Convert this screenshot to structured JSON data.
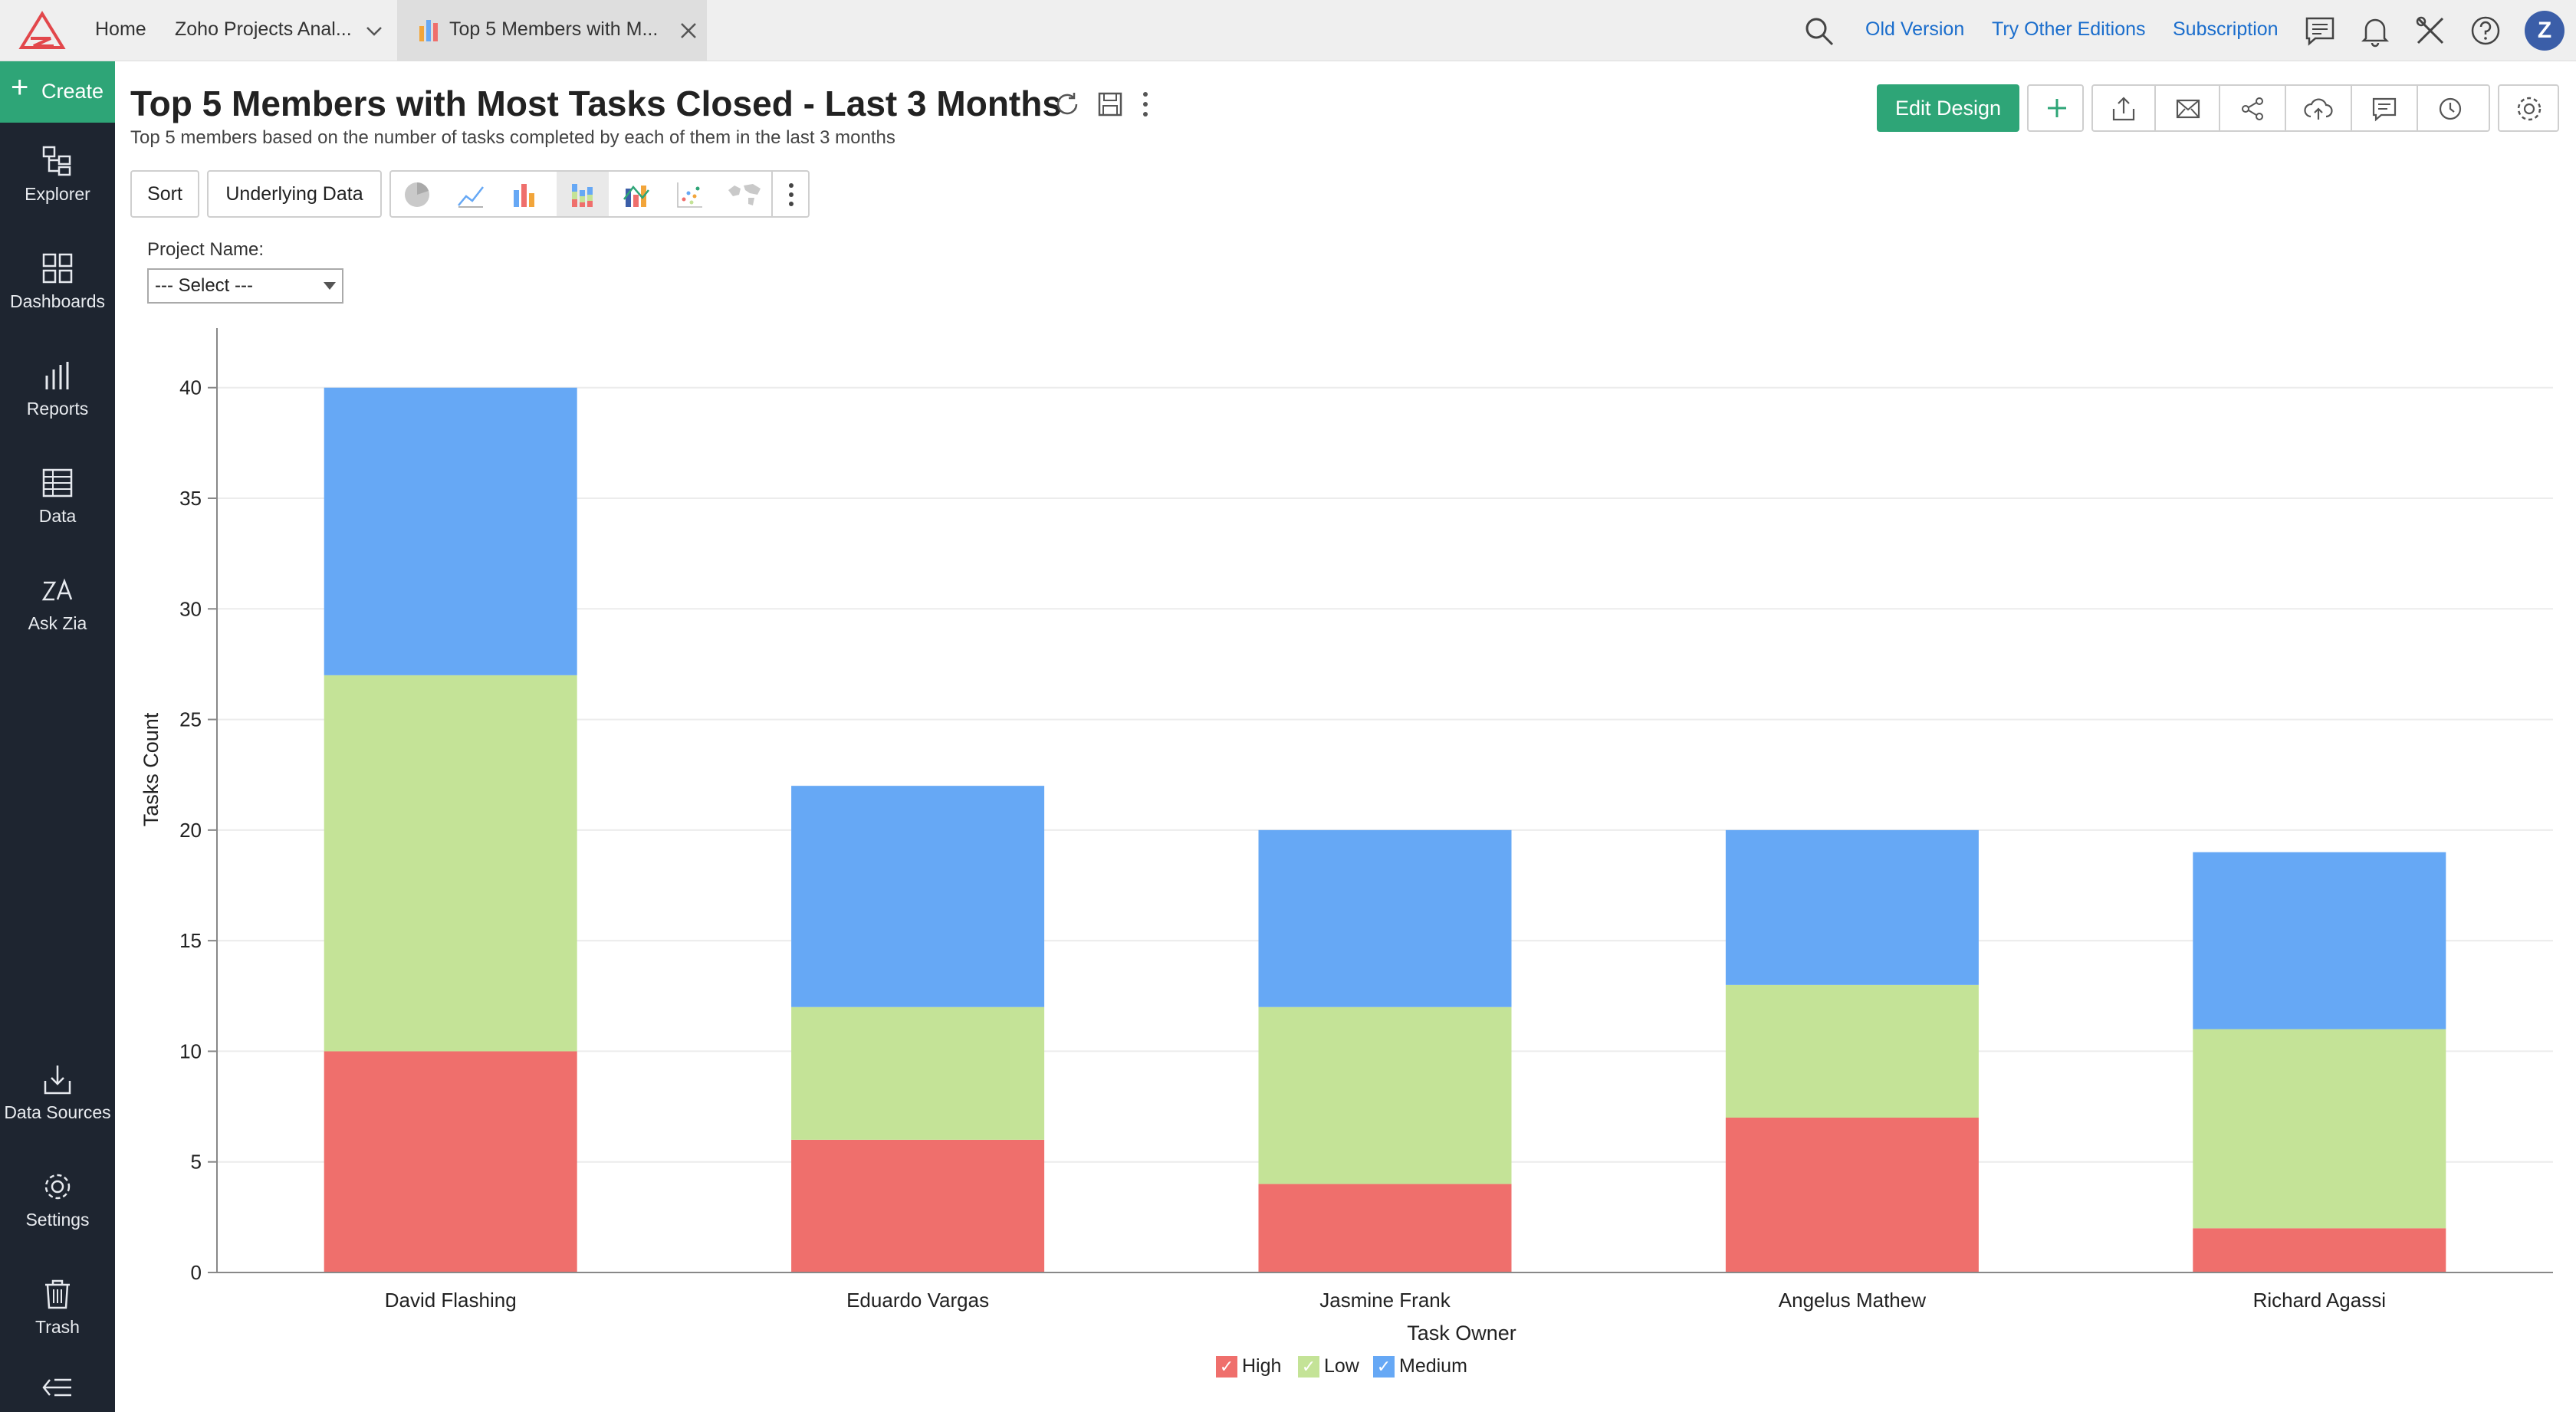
{
  "topbar": {
    "home": "Home",
    "workspace": "Zoho Projects Anal...",
    "tab_title": "Top 5 Members with M...",
    "links": [
      "Old Version",
      "Try Other Editions",
      "Subscription"
    ],
    "avatar": "Z"
  },
  "sidebar": {
    "create": "Create",
    "items": [
      {
        "label": "Explorer",
        "icon": "explorer-icon"
      },
      {
        "label": "Dashboards",
        "icon": "dashboards-icon"
      },
      {
        "label": "Reports",
        "icon": "reports-icon"
      },
      {
        "label": "Data",
        "icon": "data-icon"
      },
      {
        "label": "Ask Zia",
        "icon": "zia-icon"
      }
    ],
    "bottom_items": [
      {
        "label": "Data Sources",
        "icon": "data-sources-icon"
      },
      {
        "label": "Settings",
        "icon": "gear-icon"
      },
      {
        "label": "Trash",
        "icon": "trash-icon"
      }
    ]
  },
  "report": {
    "title": "Top 5 Members with Most Tasks Closed - Last 3 Months",
    "subtitle": "Top 5 members based on the number of tasks completed by each of them in the last 3 months",
    "edit_design": "Edit Design",
    "sort": "Sort",
    "underlying_data": "Underlying Data"
  },
  "filter": {
    "label": "Project Name:",
    "value": "--- Select ---"
  },
  "colors": {
    "high": "#ef6f6c",
    "low": "#c4e397",
    "medium": "#66a8f5",
    "accent": "#2ea577",
    "sidebar": "#1e2530"
  },
  "chart_data": {
    "type": "bar",
    "stacked": true,
    "categories": [
      "David Flashing",
      "Eduardo Vargas",
      "Jasmine Frank",
      "Angelus Mathew",
      "Richard Agassi"
    ],
    "series": [
      {
        "name": "High",
        "values": [
          10,
          6,
          4,
          7,
          2
        ]
      },
      {
        "name": "Low",
        "values": [
          17,
          6,
          8,
          6,
          9
        ]
      },
      {
        "name": "Medium",
        "values": [
          13,
          10,
          8,
          7,
          8
        ]
      }
    ],
    "xlabel": "Task Owner",
    "ylabel": "Tasks Count",
    "ylim": [
      0,
      42
    ],
    "yticks": [
      0,
      5,
      10,
      15,
      20,
      25,
      30,
      35,
      40
    ],
    "grid": true,
    "legend": "bottom-center"
  }
}
